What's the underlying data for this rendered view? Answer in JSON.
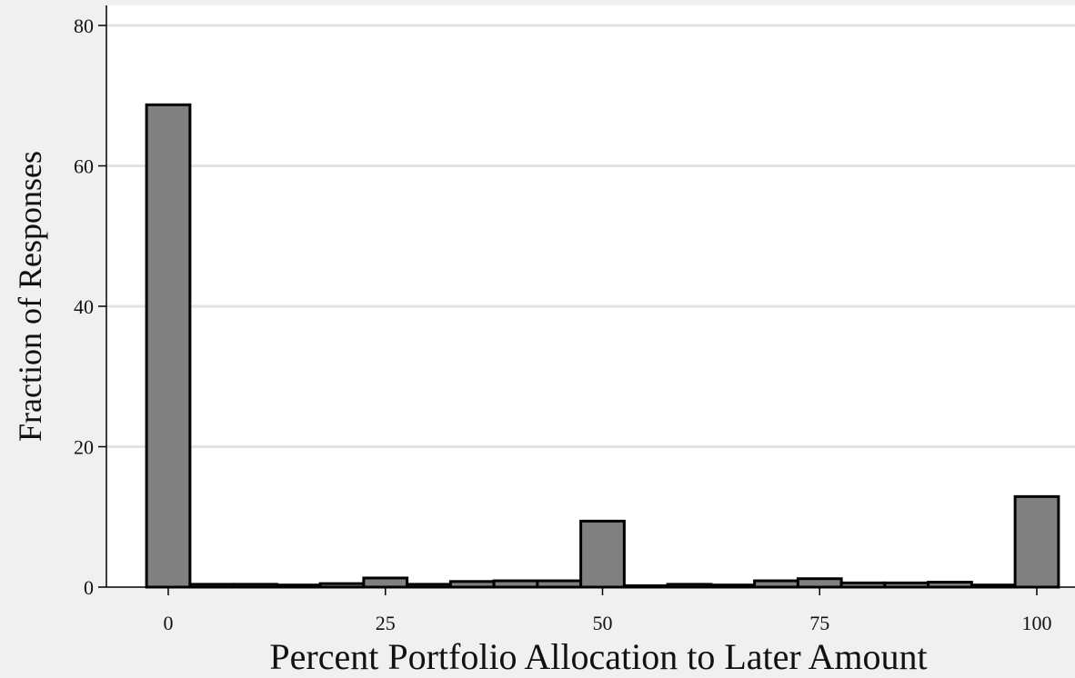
{
  "chart_data": {
    "type": "bar",
    "subtype": "histogram",
    "title": "",
    "xlabel": "Percent Portfolio Allocation to Later Amount",
    "ylabel": "Fraction of Responses",
    "xlim": [
      -5,
      105
    ],
    "ylim": [
      0,
      82
    ],
    "xticks": [
      0,
      25,
      50,
      75,
      100
    ],
    "yticks": [
      0,
      20,
      40,
      60,
      80
    ],
    "bin_width": 5,
    "grid": "horizontal",
    "legend": "none",
    "bins": [
      {
        "x": 0,
        "value": 68.7
      },
      {
        "x": 5,
        "value": 0.4
      },
      {
        "x": 10,
        "value": 0.4
      },
      {
        "x": 15,
        "value": 0.3
      },
      {
        "x": 20,
        "value": 0.5
      },
      {
        "x": 25,
        "value": 1.3
      },
      {
        "x": 30,
        "value": 0.4
      },
      {
        "x": 35,
        "value": 0.8
      },
      {
        "x": 40,
        "value": 0.9
      },
      {
        "x": 45,
        "value": 0.9
      },
      {
        "x": 50,
        "value": 9.4
      },
      {
        "x": 55,
        "value": 0.2
      },
      {
        "x": 60,
        "value": 0.4
      },
      {
        "x": 65,
        "value": 0.3
      },
      {
        "x": 70,
        "value": 0.9
      },
      {
        "x": 75,
        "value": 1.2
      },
      {
        "x": 80,
        "value": 0.6
      },
      {
        "x": 85,
        "value": 0.6
      },
      {
        "x": 90,
        "value": 0.7
      },
      {
        "x": 95,
        "value": 0.3
      },
      {
        "x": 100,
        "value": 12.9
      }
    ],
    "colors": {
      "bar_fill": "#808080",
      "bar_stroke": "#000000",
      "gridline": "#e3e3e3",
      "plot_background": "#ffffff",
      "page_background": "#f0f0f0"
    }
  }
}
